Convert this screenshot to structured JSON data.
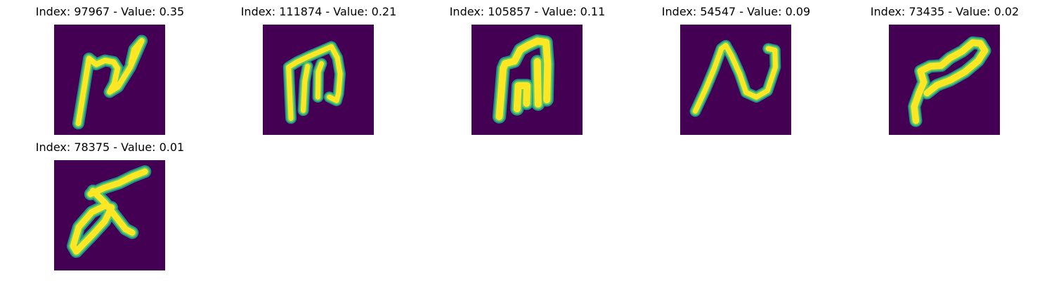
{
  "panels": [
    {
      "title": "Index: 97967 - Value: 0.35"
    },
    {
      "title": "Index: 111874 - Value: 0.21"
    },
    {
      "title": "Index: 105857 - Value: 0.11"
    },
    {
      "title": "Index: 54547 - Value: 0.09"
    },
    {
      "title": "Index: 73435 - Value: 0.02"
    },
    {
      "title": "Index: 78375 - Value: 0.01"
    }
  ],
  "colors": {
    "background": "#440154",
    "stroke_outer": "#21918c",
    "stroke_mid": "#5ec962",
    "stroke_core": "#fde725",
    "figure_background": "#ffffff"
  }
}
